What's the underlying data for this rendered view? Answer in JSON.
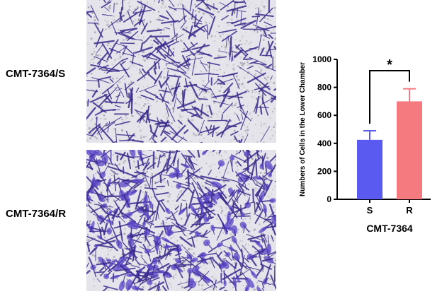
{
  "panels": {
    "top_label": "CMT-7364/S",
    "bottom_label": "CMT-7364/R",
    "stain_color": "#3b2a8c",
    "background_color": "#e4e4ea"
  },
  "chart_data": {
    "type": "bar",
    "categories": [
      "S",
      "R"
    ],
    "values": [
      425,
      700
    ],
    "errors": [
      65,
      90
    ],
    "colors": [
      "#5a5af0",
      "#f57a80"
    ],
    "xlabel": "CMT-7364",
    "ylabel": "Numbers of Cells in the Lower Chamber",
    "ylim": [
      0,
      1000
    ],
    "yticks": [
      "0",
      "200",
      "400",
      "600",
      "800",
      "1000"
    ],
    "significance": "*"
  }
}
